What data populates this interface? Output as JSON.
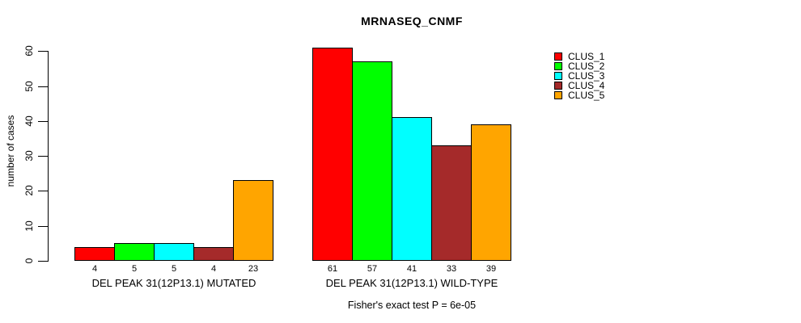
{
  "chart_data": {
    "type": "bar",
    "title": "MRNASEQ_CNMF",
    "ylabel": "number of cases",
    "xlabel": "",
    "footnote": "Fisher's exact test P = 6e-05",
    "ylim": [
      0,
      60
    ],
    "yticks": [
      0,
      10,
      20,
      30,
      40,
      50,
      60
    ],
    "grid": false,
    "legend_position": "right",
    "bar_value_labels_shown": true,
    "categories": [
      "DEL PEAK 31(12P13.1) MUTATED",
      "DEL PEAK 31(12P13.1) WILD-TYPE"
    ],
    "series": [
      {
        "name": "CLUS_1",
        "color": "#FF0000",
        "values": [
          4,
          61
        ]
      },
      {
        "name": "CLUS_2",
        "color": "#00FF00",
        "values": [
          5,
          57
        ]
      },
      {
        "name": "CLUS_3",
        "color": "#00FFFF",
        "values": [
          5,
          41
        ]
      },
      {
        "name": "CLUS_4",
        "color": "#A52A2A",
        "values": [
          4,
          33
        ]
      },
      {
        "name": "CLUS_5",
        "color": "#FFA500",
        "values": [
          23,
          39
        ]
      }
    ]
  }
}
